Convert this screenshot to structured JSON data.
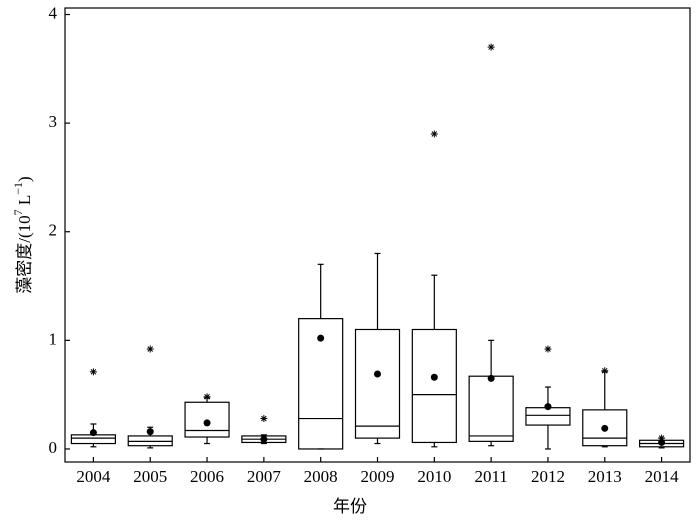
{
  "chart_data": {
    "type": "box",
    "x_label": "年份",
    "y_label_parts": [
      "藻密度/(10",
      "7",
      " L",
      "−1",
      ")"
    ],
    "categories": [
      "2004",
      "2005",
      "2006",
      "2007",
      "2008",
      "2009",
      "2010",
      "2011",
      "2012",
      "2013",
      "2014"
    ],
    "boxes": [
      {
        "whislo": 0.02,
        "q1": 0.05,
        "med": 0.1,
        "q3": 0.13,
        "whishi": 0.23,
        "mean": 0.15,
        "fliers": [
          0.71
        ]
      },
      {
        "whislo": 0.01,
        "q1": 0.03,
        "med": 0.07,
        "q3": 0.12,
        "whishi": 0.2,
        "mean": 0.16,
        "fliers": [
          0.92
        ]
      },
      {
        "whislo": 0.05,
        "q1": 0.11,
        "med": 0.17,
        "q3": 0.43,
        "whishi": 0.47,
        "mean": 0.24,
        "fliers": [
          0.48
        ]
      },
      {
        "whislo": 0.05,
        "q1": 0.06,
        "med": 0.09,
        "q3": 0.12,
        "whishi": 0.13,
        "mean": 0.09,
        "fliers": [
          0.28
        ]
      },
      {
        "whislo": 0.0,
        "q1": 0.0,
        "med": 0.28,
        "q3": 1.2,
        "whishi": 1.7,
        "mean": 1.02,
        "fliers": []
      },
      {
        "whislo": 0.05,
        "q1": 0.1,
        "med": 0.21,
        "q3": 1.1,
        "whishi": 1.8,
        "mean": 0.69,
        "fliers": []
      },
      {
        "whislo": 0.02,
        "q1": 0.06,
        "med": 0.5,
        "q3": 1.1,
        "whishi": 1.6,
        "mean": 0.66,
        "fliers": [
          2.9
        ]
      },
      {
        "whislo": 0.03,
        "q1": 0.07,
        "med": 0.12,
        "q3": 0.67,
        "whishi": 1.0,
        "mean": 0.65,
        "fliers": [
          3.7
        ]
      },
      {
        "whislo": 0.0,
        "q1": 0.22,
        "med": 0.31,
        "q3": 0.38,
        "whishi": 0.57,
        "mean": 0.39,
        "fliers": [
          0.92
        ]
      },
      {
        "whislo": 0.02,
        "q1": 0.03,
        "med": 0.1,
        "q3": 0.36,
        "whishi": 0.71,
        "mean": 0.19,
        "fliers": [
          0.72
        ]
      },
      {
        "whislo": 0.01,
        "q1": 0.02,
        "med": 0.05,
        "q3": 0.08,
        "whishi": 0.1,
        "mean": 0.06,
        "fliers": [
          0.1
        ]
      }
    ],
    "color": "#000000",
    "ylim": [
      -0.12,
      4.06
    ],
    "yticks": [
      0,
      1,
      2,
      3,
      4
    ]
  }
}
